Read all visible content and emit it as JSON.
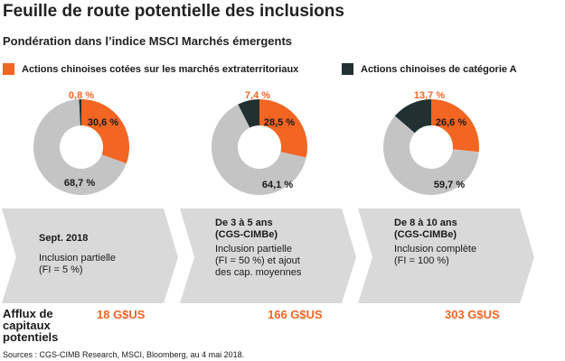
{
  "title": "Feuille de route potentielle des inclusions",
  "subtitle": "Pondération dans l’indice MSCI Marchés émergents",
  "legend": [
    {
      "label": "Actions chinoises cotées sur les marchés extraterritoriaux",
      "color": "#f26522"
    },
    {
      "label": "Actions chinoises de catégorie A",
      "color": "#213031"
    }
  ],
  "colors": {
    "offshore": "#f26522",
    "a_shares": "#213031",
    "rest": "#c4c4c4",
    "arrow": "#d9d9d9"
  },
  "chart_data": [
    {
      "type": "pie",
      "donut": true,
      "series_names": [
        "Actions chinoises cotées sur les marchés extraterritoriaux",
        "Actions chinoises de catégorie A",
        ""
      ],
      "values": [
        30.6,
        0.8,
        68.7
      ],
      "labels": [
        "30,6 %",
        "0,8 %",
        "68,7 %"
      ]
    },
    {
      "type": "pie",
      "donut": true,
      "series_names": [
        "Actions chinoises cotées sur les marchés extraterritoriaux",
        "Actions chinoises de catégorie A",
        ""
      ],
      "values": [
        28.5,
        7.4,
        64.1
      ],
      "labels": [
        "28,5 %",
        "7,4 %",
        "64,1 %"
      ]
    },
    {
      "type": "pie",
      "donut": true,
      "series_names": [
        "Actions chinoises cotées sur les marchés extraterritoriaux",
        "Actions chinoises de catégorie A",
        ""
      ],
      "values": [
        26.6,
        13.7,
        59.7
      ],
      "labels": [
        "26,6 %",
        "13,7 %",
        "59,7 %"
      ]
    }
  ],
  "stages": [
    {
      "heading": "Sept. 2018",
      "body_lines": [
        "Inclusion partielle",
        "(FI = 5 %)"
      ]
    },
    {
      "heading_lines": [
        "De 3 à 5 ans",
        "(CGS-CIMBe)"
      ],
      "body_lines": [
        "Inclusion partielle",
        "(FI = 50 %) et ajout",
        "des cap. moyennes"
      ]
    },
    {
      "heading_lines": [
        "De 8 à 10 ans",
        "(CGS-CIMBe)"
      ],
      "body_lines": [
        "Inclusion complète",
        "(FI = 100 %)"
      ]
    }
  ],
  "flows_label_lines": [
    "Afflux de",
    "capitaux",
    "potentiels"
  ],
  "flows": [
    "18 G$US",
    "166 G$US",
    "303 G$US"
  ],
  "source": "Sources : CGS-CIMB Research, MSCI, Bloomberg, au 4 mai 2018."
}
